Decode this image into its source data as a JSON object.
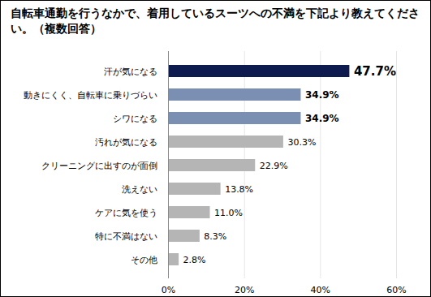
{
  "chart_data": {
    "type": "bar",
    "orientation": "horizontal",
    "title": "自転車通勤を行うなかで、着用しているスーツへの不満を下記より教えてください。（複数回答）",
    "categories": [
      "汗が気になる",
      "動きにくく、自転車に乗りづらい",
      "シワになる",
      "汚れが気になる",
      "クリーニングに出すのが面倒",
      "洗えない",
      "ケアに気を使う",
      "特に不満はない",
      "その他"
    ],
    "values": [
      47.7,
      34.9,
      34.9,
      30.3,
      22.9,
      13.8,
      11.0,
      8.3,
      2.8
    ],
    "value_labels": [
      "47.7%",
      "34.9%",
      "34.9%",
      "30.3%",
      "22.9%",
      "13.8%",
      "11.0%",
      "8.3%",
      "2.8%"
    ],
    "colors": [
      "#0d1b4f",
      "#7b8fb2",
      "#7b8fb2",
      "#b5b5b5",
      "#b5b5b5",
      "#b5b5b5",
      "#b5b5b5",
      "#b5b5b5",
      "#b5b5b5"
    ],
    "xlim": [
      0,
      60
    ],
    "xticks": [
      {
        "value": 0,
        "label": "0%"
      },
      {
        "value": 20,
        "label": "20%"
      },
      {
        "value": 40,
        "label": "40%"
      },
      {
        "value": 60,
        "label": "60%"
      }
    ],
    "grid": true,
    "data_labels": true
  }
}
